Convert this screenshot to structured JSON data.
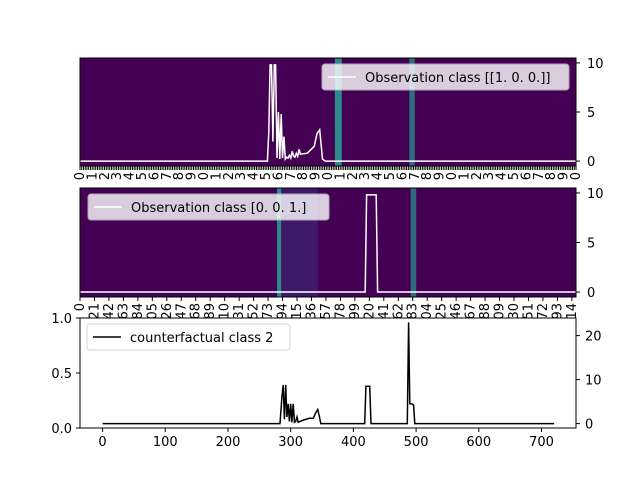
{
  "chart_data": [
    {
      "type": "heatmap",
      "panel": "top",
      "background_color": "#440154",
      "highlight_color": "#2a8f8e",
      "highlight_columns": [
        [
          370,
          380
        ],
        [
          478,
          486
        ]
      ],
      "y2lim": [
        -0.5,
        10.5
      ],
      "y2ticks": [
        0,
        5,
        10
      ],
      "xtick_labels": [
        "0",
        "1",
        "2",
        "3",
        "4",
        "5",
        "6",
        "7",
        "8",
        "9",
        "0",
        "1",
        "2",
        "3",
        "4",
        "5",
        "6",
        "7",
        "8",
        "9",
        "0",
        "1",
        "2",
        "3",
        "4",
        "5",
        "6",
        "7",
        "8",
        "9",
        "0",
        "1",
        "2",
        "3",
        "4",
        "5",
        "6",
        "7",
        "8",
        "9",
        "0",
        "1",
        "2",
        "3",
        "4",
        "5",
        "6",
        "7",
        "8",
        "9",
        "0",
        "1",
        "2",
        "3",
        "4",
        "5",
        "6",
        "7",
        "8",
        "9",
        "0",
        "1",
        "2",
        "3",
        "4",
        "5",
        "6",
        "7",
        "8",
        "9",
        "0",
        "1",
        "2",
        "3",
        "4",
        "5",
        "6",
        "7",
        "8",
        "9",
        "0",
        "1",
        "2",
        "3",
        "4",
        "5",
        "6",
        "7",
        "8",
        "9",
        "0",
        "1",
        "2",
        "3",
        "4",
        "5",
        "6",
        "7",
        "8",
        "9",
        "0",
        "1",
        "2",
        "3",
        "4",
        "5",
        "6",
        "7",
        "8",
        "9",
        "0",
        "1",
        "2",
        "3",
        "4",
        "5",
        "6",
        "7",
        "8",
        "9",
        "0",
        "1",
        "2",
        "3",
        "4",
        "5",
        "6",
        "7",
        "8",
        "9",
        "0",
        "1",
        "2",
        "3",
        "4",
        "5",
        "6",
        "7",
        "8",
        "9",
        "0",
        "1",
        "2",
        "3",
        "4",
        "5",
        "6",
        "7",
        "8",
        "9",
        "0",
        "1",
        "2",
        "3",
        "4",
        "5",
        "6",
        "7",
        "8",
        "9",
        "0",
        "1",
        "2",
        "3",
        "4",
        "5",
        "6",
        "7",
        "8",
        "9",
        "0",
        "1",
        "2",
        "3",
        "4",
        "5",
        "6",
        "7",
        "8",
        "9",
        "0",
        "1",
        "2",
        "3",
        "4",
        "5",
        "6",
        "7",
        "8",
        "9",
        "0",
        "1",
        "2",
        "3",
        "4",
        "5",
        "6",
        "7",
        "8",
        "9",
        "0",
        "1",
        "2",
        "3",
        "4",
        "5",
        "6",
        "7",
        "8",
        "9",
        "0",
        "1",
        "2",
        "3",
        "4",
        "5",
        "6",
        "7",
        "8",
        "9",
        "0",
        "1",
        "2",
        "3",
        "4",
        "5",
        "6",
        "7",
        "8",
        "9",
        "0",
        "1",
        "2",
        "3",
        "4",
        "5",
        "6",
        "7",
        "8",
        "9",
        "0",
        "1",
        "2",
        "3",
        "4",
        "5",
        "6",
        "7",
        "8",
        "9",
        "0",
        "1",
        "2",
        "3",
        "4",
        "5",
        "6",
        "7",
        "8",
        "9",
        "0",
        "1",
        "2",
        "3",
        "4",
        "5",
        "6",
        "7",
        "8",
        "9",
        "0",
        "1",
        "2",
        "3",
        "4",
        "5",
        "6",
        "7",
        "8",
        "9",
        "0",
        "1",
        "2",
        "3",
        "4"
      ],
      "legend": "Observation class [[1. 0. 0.]]",
      "line_color": "#ffffff",
      "series_x": [
        0,
        272,
        274,
        276,
        278,
        280,
        282,
        284,
        286,
        288,
        290,
        292,
        294,
        296,
        298,
        300,
        302,
        304,
        306,
        308,
        310,
        312,
        314,
        316,
        318,
        320,
        330,
        340,
        344,
        348,
        352,
        356,
        720
      ],
      "series_y": [
        0,
        0,
        3,
        9.8,
        9.8,
        2,
        9.8,
        9.8,
        0.3,
        5,
        0.2,
        4.8,
        0.3,
        2.5,
        0.2,
        0.4,
        0.3,
        0.6,
        0.3,
        1.0,
        0.5,
        0.4,
        0.8,
        0.5,
        1.2,
        0.7,
        0.8,
        1.5,
        2.8,
        3.2,
        0.2,
        0,
        0
      ]
    },
    {
      "type": "heatmap",
      "panel": "middle",
      "background_color": "#440154",
      "highlight_color": "#2a8f8e",
      "highlight_columns": [
        [
          286,
          292
        ],
        [
          480,
          488
        ]
      ],
      "faint_columns": [
        [
          292,
          345
        ]
      ],
      "y2lim": [
        -0.5,
        10.5
      ],
      "y2ticks": [
        0,
        5,
        10
      ],
      "xtick_labels": [
        "0",
        "21",
        "42",
        "63",
        "84",
        "105",
        "126",
        "147",
        "168",
        "189",
        "210",
        "231",
        "252",
        "273",
        "294",
        "315",
        "336",
        "357",
        "378",
        "399",
        "420",
        "441",
        "462",
        "483",
        "504",
        "525",
        "546",
        "567",
        "588",
        "609",
        "630",
        "651",
        "672",
        "693",
        "714"
      ],
      "legend": "Observation class [0. 0. 1.]",
      "line_color": "#ffffff",
      "series_x": [
        0,
        414,
        416,
        418,
        420,
        428,
        430,
        432,
        720
      ],
      "series_y": [
        0,
        0,
        9.8,
        9.8,
        9.8,
        9.8,
        9.8,
        0,
        0
      ]
    },
    {
      "type": "line",
      "panel": "bottom",
      "xlim": [
        -36,
        755
      ],
      "xticks": [
        0,
        100,
        200,
        300,
        400,
        500,
        600,
        700
      ],
      "ylim": [
        0,
        1.0
      ],
      "yticks": [
        "0.0",
        "0.5",
        "1.0"
      ],
      "y2lim": [
        -1,
        24
      ],
      "y2ticks": [
        0,
        10,
        20
      ],
      "legend": "counterfactual class 2",
      "line_color": "#000000",
      "series_x": [
        0,
        160,
        162,
        283,
        286,
        288,
        290,
        292,
        294,
        296,
        298,
        300,
        302,
        304,
        306,
        308,
        310,
        312,
        320,
        330,
        336,
        340,
        343,
        346,
        348,
        380,
        418,
        420,
        426,
        428,
        486,
        488,
        490,
        493,
        496,
        498,
        600,
        720
      ],
      "series_y": [
        0,
        0,
        0,
        0,
        6,
        8.8,
        1,
        8.8,
        1.5,
        4.5,
        0.5,
        4.5,
        0.3,
        4.5,
        0.3,
        0.5,
        1.5,
        0.3,
        0.8,
        1.2,
        1.2,
        2.5,
        3.2,
        1.5,
        0,
        0,
        0,
        8.5,
        8.5,
        0,
        0,
        23,
        4.5,
        4.5,
        4.2,
        0,
        0,
        0
      ]
    }
  ]
}
